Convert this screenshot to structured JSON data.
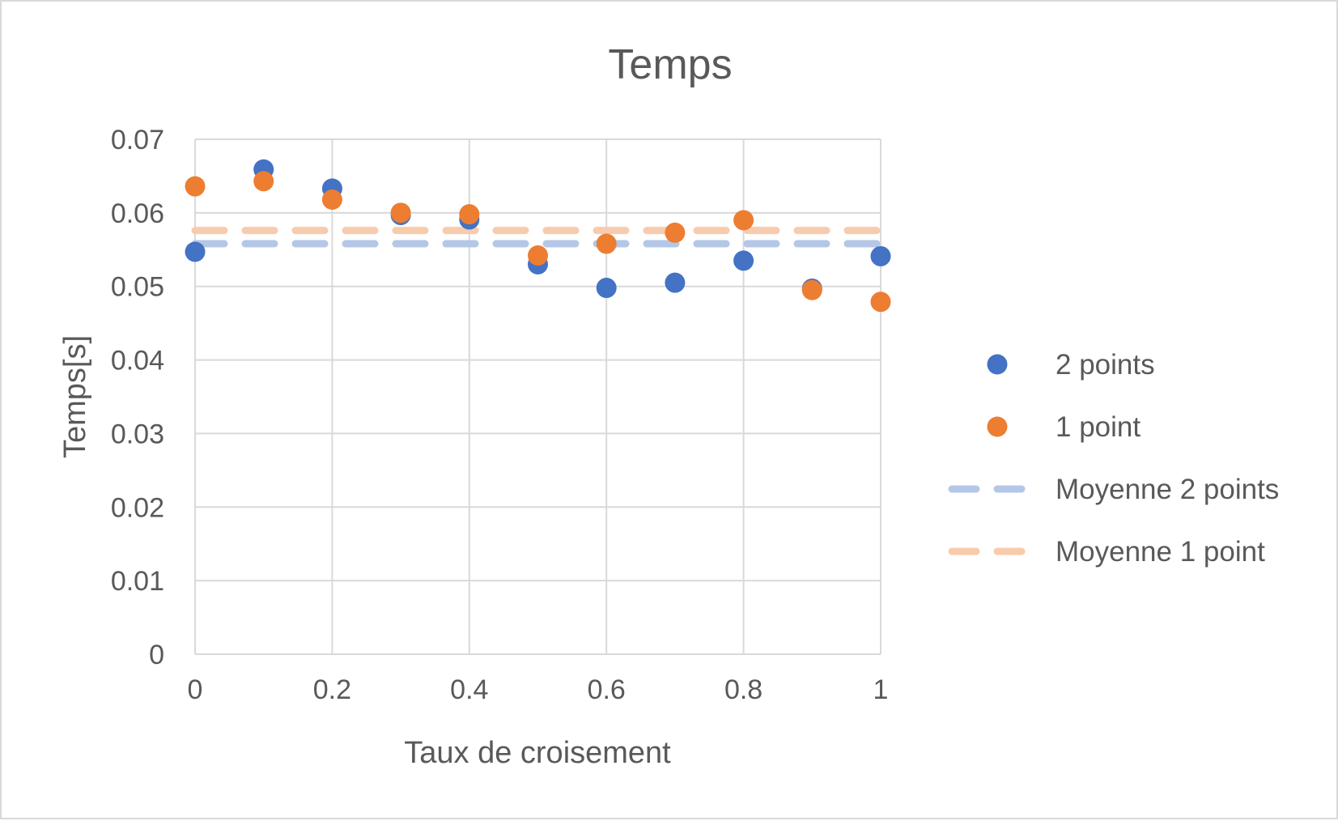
{
  "chart_data": {
    "type": "scatter",
    "title": "Temps",
    "xlabel": "Taux de croisement",
    "ylabel": "Temps[s]",
    "xlim": [
      0,
      1
    ],
    "ylim": [
      0,
      0.07
    ],
    "x_ticks": [
      "0",
      "0.2",
      "0.4",
      "0.6",
      "0.8",
      "1"
    ],
    "y_ticks": [
      "0",
      "0.01",
      "0.02",
      "0.03",
      "0.04",
      "0.05",
      "0.06",
      "0.07"
    ],
    "x_tick_values": [
      0,
      0.2,
      0.4,
      0.6,
      0.8,
      1
    ],
    "y_tick_values": [
      0,
      0.01,
      0.02,
      0.03,
      0.04,
      0.05,
      0.06,
      0.07
    ],
    "grid": true,
    "legend_position": "right",
    "x": [
      0,
      0.1,
      0.2,
      0.3,
      0.4,
      0.5,
      0.6,
      0.7,
      0.8,
      0.9,
      1
    ],
    "series": [
      {
        "name": "2 points",
        "kind": "markers",
        "color": "#4472C4",
        "values": [
          0.0547,
          0.0659,
          0.0633,
          0.0597,
          0.0591,
          0.053,
          0.0498,
          0.0505,
          0.0535,
          0.0497,
          0.0541
        ]
      },
      {
        "name": "1 point",
        "kind": "markers",
        "color": "#ED7D31",
        "values": [
          0.0636,
          0.0643,
          0.0618,
          0.06,
          0.0598,
          0.0542,
          0.0558,
          0.0573,
          0.059,
          0.0495,
          0.0479
        ]
      },
      {
        "name": "Moyenne 2 points",
        "kind": "dashed-line",
        "color": "#B4C7E7",
        "values": [
          0.0558,
          0.0558,
          0.0558,
          0.0558,
          0.0558,
          0.0558,
          0.0558,
          0.0558,
          0.0558,
          0.0558,
          0.0558
        ]
      },
      {
        "name": "Moyenne 1 point",
        "kind": "dashed-line",
        "color": "#F8CBAD",
        "values": [
          0.0576,
          0.0576,
          0.0576,
          0.0576,
          0.0576,
          0.0576,
          0.0576,
          0.0576,
          0.0576,
          0.0576,
          0.0576
        ]
      }
    ],
    "colors": {
      "grid": "#d9d9d9",
      "text": "#595959",
      "border": "#d9d9d9"
    }
  }
}
